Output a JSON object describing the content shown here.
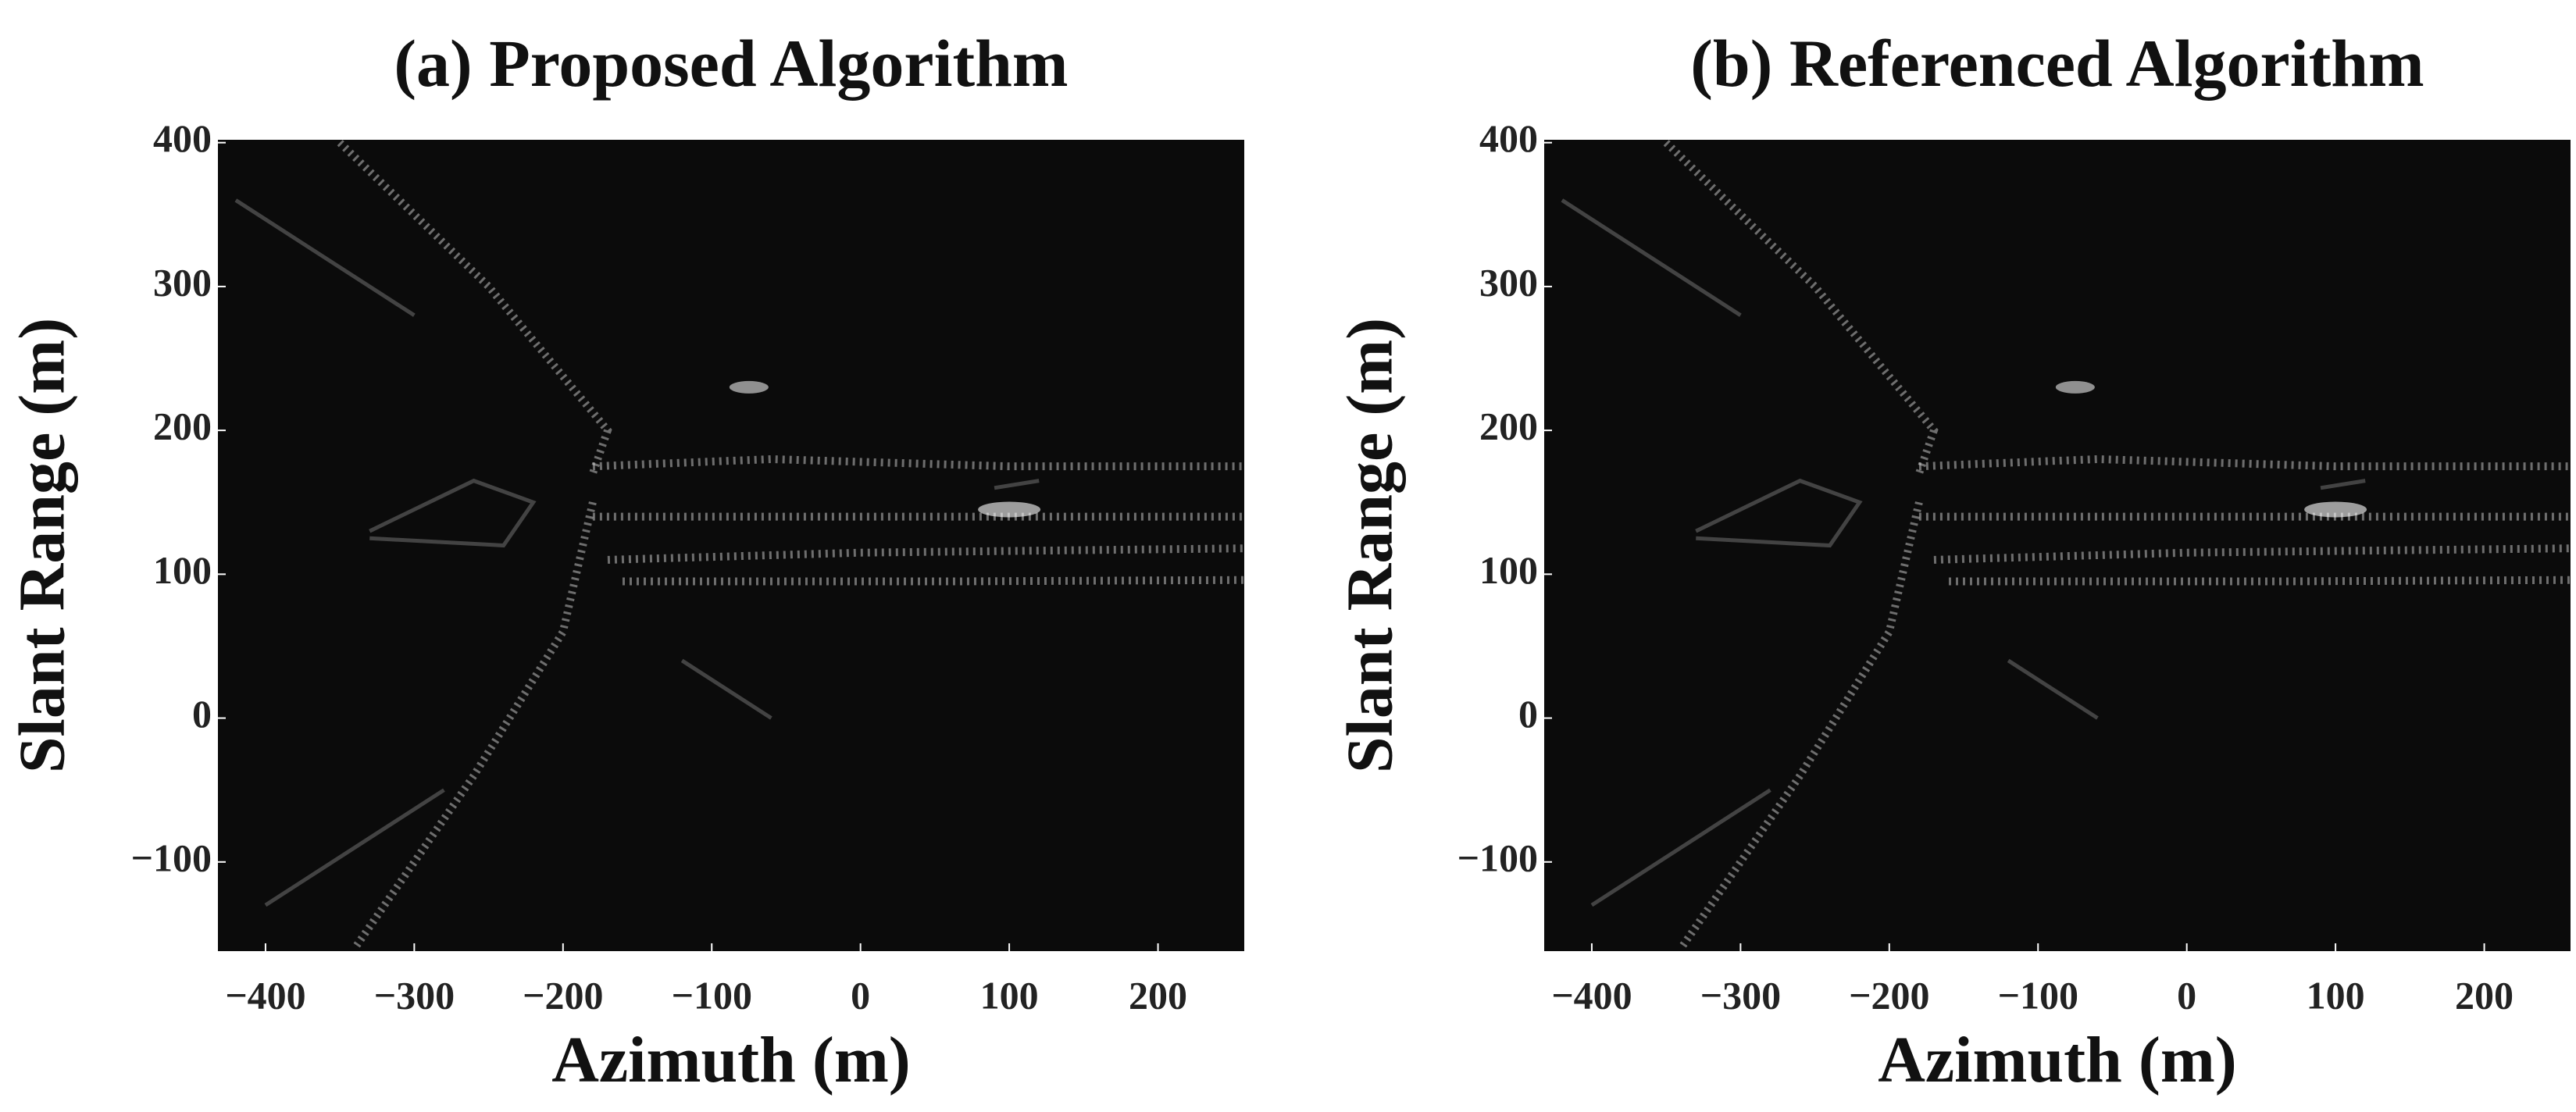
{
  "chart_data": [
    {
      "type": "image",
      "title": "(a) Proposed Algorithm",
      "xlabel": "Azimuth (m)",
      "ylabel": "Slant Range (m)",
      "xlim": [
        -432,
        258
      ],
      "ylim": [
        -162,
        402
      ],
      "xticks": [
        {
          "value": -400,
          "label": "−400"
        },
        {
          "value": -300,
          "label": "−300"
        },
        {
          "value": -200,
          "label": "−200"
        },
        {
          "value": -100,
          "label": "−100"
        },
        0,
        100,
        200
      ],
      "yticks": [
        {
          "value": -100,
          "label": "−100"
        },
        0,
        100,
        200,
        300,
        400
      ]
    },
    {
      "type": "image",
      "title": "(b) Referenced Algorithm",
      "xlabel": "Azimuth (m)",
      "ylabel": "Slant Range (m)",
      "xlim": [
        -432,
        258
      ],
      "ylim": [
        -162,
        402
      ],
      "xticks": [
        {
          "value": -400,
          "label": "−400"
        },
        {
          "value": -300,
          "label": "−300"
        },
        {
          "value": -200,
          "label": "−200"
        },
        {
          "value": -100,
          "label": "−100"
        },
        0,
        100,
        200
      ],
      "yticks": [
        {
          "value": -100,
          "label": "−100"
        },
        0,
        100,
        200,
        300,
        400
      ]
    }
  ]
}
